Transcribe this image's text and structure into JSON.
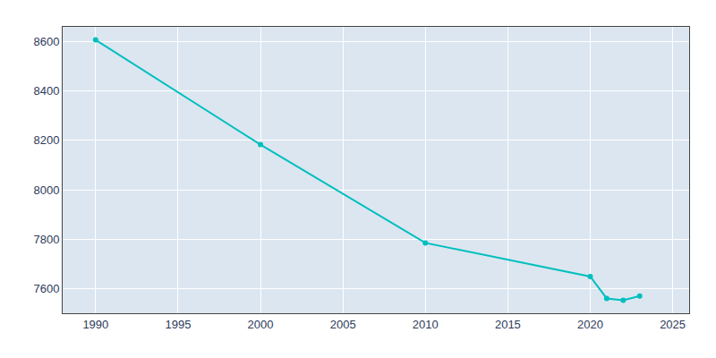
{
  "chart_data": {
    "type": "line",
    "x": [
      1990,
      2000,
      2010,
      2020,
      2021,
      2022,
      2023
    ],
    "values": [
      8607,
      8183,
      7785,
      7649,
      7560,
      7553,
      7570
    ],
    "color": "#00BFBF",
    "marker": "circle",
    "xlim": [
      1988,
      2026
    ],
    "ylim": [
      7500,
      8660
    ],
    "xticks": [
      1990,
      1995,
      2000,
      2005,
      2010,
      2015,
      2020,
      2025
    ],
    "yticks": [
      7600,
      7800,
      8000,
      8200,
      8400,
      8600
    ],
    "grid": true
  }
}
